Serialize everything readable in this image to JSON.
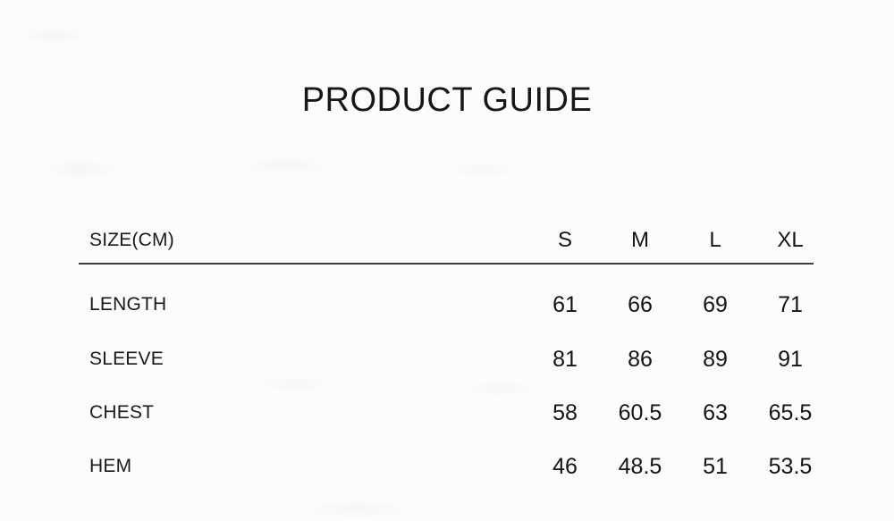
{
  "title": "PRODUCT GUIDE",
  "table": {
    "header": {
      "label": "SIZE(CM)",
      "sizes": [
        "S",
        "M",
        "L",
        "XL"
      ]
    },
    "rows": [
      {
        "label": "LENGTH",
        "values": [
          "61",
          "66",
          "69",
          "71"
        ]
      },
      {
        "label": "SLEEVE",
        "values": [
          "81",
          "86",
          "89",
          "91"
        ]
      },
      {
        "label": "CHEST",
        "values": [
          "58",
          "60.5",
          "63",
          "65.5"
        ]
      },
      {
        "label": "HEM",
        "values": [
          "46",
          "48.5",
          "51",
          "53.5"
        ]
      }
    ]
  },
  "colors": {
    "background": "#fcfcfc",
    "text": "#171717",
    "divider": "#3e3e3e"
  }
}
